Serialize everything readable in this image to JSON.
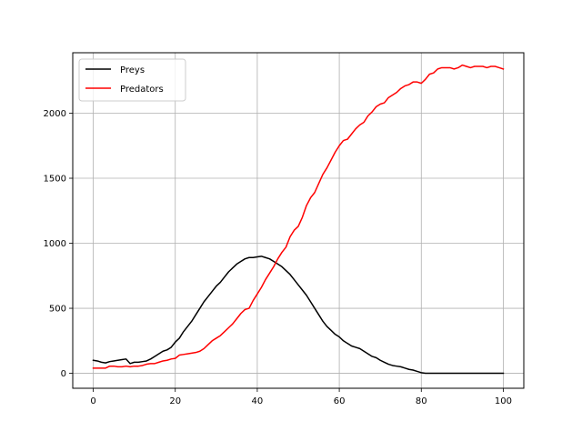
{
  "chart_data": {
    "type": "line",
    "title": "",
    "xlabel": "",
    "ylabel": "",
    "xlim": [
      -5,
      105
    ],
    "ylim": [
      -115,
      2465
    ],
    "xticks": [
      0,
      20,
      40,
      60,
      80,
      100
    ],
    "xtick_labels": [
      "0",
      "20",
      "40",
      "60",
      "80",
      "100"
    ],
    "yticks": [
      0,
      500,
      1000,
      1500,
      2000
    ],
    "ytick_labels": [
      "0",
      "500",
      "1000",
      "1500",
      "2000"
    ],
    "grid": true,
    "legend_position": "top-left",
    "x": [
      0,
      1,
      2,
      3,
      4,
      5,
      6,
      7,
      8,
      9,
      10,
      11,
      12,
      13,
      14,
      15,
      16,
      17,
      18,
      19,
      20,
      21,
      22,
      23,
      24,
      25,
      26,
      27,
      28,
      29,
      30,
      31,
      32,
      33,
      34,
      35,
      36,
      37,
      38,
      39,
      40,
      41,
      42,
      43,
      44,
      45,
      46,
      47,
      48,
      49,
      50,
      51,
      52,
      53,
      54,
      55,
      56,
      57,
      58,
      59,
      60,
      61,
      62,
      63,
      64,
      65,
      66,
      67,
      68,
      69,
      70,
      71,
      72,
      73,
      74,
      75,
      76,
      77,
      78,
      79,
      80,
      81,
      82,
      83,
      84,
      85,
      86,
      87,
      88,
      89,
      90,
      91,
      92,
      93,
      94,
      95,
      96,
      97,
      98,
      99,
      100
    ],
    "series": [
      {
        "name": "Preys",
        "color": "#000000",
        "values": [
          100,
          95,
          85,
          80,
          90,
          95,
          100,
          105,
          110,
          75,
          85,
          85,
          90,
          95,
          110,
          130,
          150,
          170,
          180,
          200,
          240,
          270,
          320,
          360,
          400,
          450,
          500,
          550,
          590,
          630,
          670,
          700,
          740,
          780,
          810,
          840,
          860,
          880,
          890,
          890,
          895,
          900,
          890,
          880,
          860,
          840,
          820,
          790,
          760,
          720,
          680,
          640,
          600,
          550,
          500,
          450,
          400,
          360,
          330,
          300,
          280,
          250,
          230,
          210,
          200,
          190,
          170,
          150,
          130,
          120,
          100,
          85,
          70,
          60,
          55,
          50,
          40,
          30,
          25,
          15,
          5,
          0,
          0,
          0,
          0,
          0,
          0,
          0,
          0,
          0,
          0,
          0,
          0,
          0,
          0,
          0,
          0,
          0,
          0,
          0,
          0
        ]
      },
      {
        "name": "Predators",
        "color": "#ff0000",
        "values": [
          40,
          40,
          40,
          40,
          55,
          55,
          50,
          50,
          55,
          50,
          55,
          55,
          60,
          70,
          75,
          75,
          85,
          95,
          100,
          110,
          115,
          140,
          145,
          150,
          155,
          160,
          170,
          190,
          220,
          250,
          270,
          290,
          320,
          350,
          380,
          420,
          460,
          490,
          500,
          560,
          610,
          660,
          720,
          770,
          820,
          880,
          930,
          970,
          1050,
          1100,
          1130,
          1200,
          1290,
          1350,
          1390,
          1460,
          1530,
          1580,
          1640,
          1700,
          1750,
          1790,
          1800,
          1840,
          1880,
          1910,
          1930,
          1980,
          2010,
          2050,
          2070,
          2080,
          2120,
          2140,
          2160,
          2190,
          2210,
          2220,
          2240,
          2240,
          2230,
          2260,
          2300,
          2310,
          2340,
          2350,
          2350,
          2350,
          2340,
          2350,
          2370,
          2360,
          2350,
          2360,
          2360,
          2360,
          2350,
          2360,
          2360,
          2350,
          2340
        ]
      }
    ]
  }
}
